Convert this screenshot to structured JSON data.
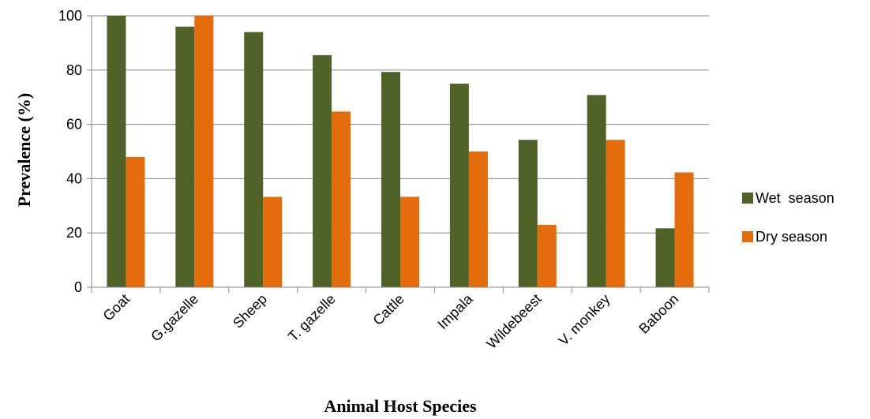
{
  "chart_data": {
    "type": "bar",
    "xlabel": "Animal Host Species",
    "ylabel": "Prevalence (%)",
    "ylim": [
      0,
      100
    ],
    "yticks": [
      0,
      20,
      40,
      60,
      80,
      100
    ],
    "categories": [
      "Goat",
      "G.gazelle",
      "Sheep",
      "T. gazelle",
      "Cattle",
      "Impala",
      "Wildebeest",
      "V. monkey",
      "Baboon"
    ],
    "series": [
      {
        "name": "Wet  season",
        "color": "#4f6228",
        "values": [
          100,
          96,
          94,
          85.5,
          79.3,
          75,
          54.3,
          70.8,
          21.7
        ]
      },
      {
        "name": "Dry season",
        "color": "#e46c0a",
        "values": [
          48,
          100,
          33.3,
          64.7,
          33.3,
          50,
          23,
          54.3,
          42.3
        ]
      }
    ],
    "grid": true,
    "legend_position": "right"
  }
}
